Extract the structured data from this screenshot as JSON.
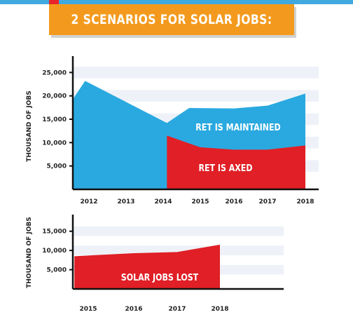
{
  "header": {
    "title": "2 SCENARIOS FOR SOLAR JOBS:"
  },
  "colors": {
    "blue": "#2aa9e0",
    "red": "#e01f26",
    "band": "#eef2f8",
    "banner": "#f39a1e"
  },
  "chart_data": [
    {
      "type": "area",
      "ylabel": "THOUSAND OF JOBS",
      "ylim": [
        0,
        27000
      ],
      "yticks": [
        5000,
        10000,
        15000,
        20000,
        25000
      ],
      "yticklabels": [
        "5,000",
        "10,000",
        "15,000",
        "20,000",
        "25,000"
      ],
      "categories": [
        "2012",
        "2013",
        "2014",
        "2015",
        "2016",
        "2017",
        "2018"
      ],
      "series": [
        {
          "name": "RET IS MAINTAINED",
          "color": "#2aa9e0",
          "points": [
            [
              2011.6,
              19500
            ],
            [
              2011.9,
              23200
            ],
            [
              2014.1,
              14200
            ],
            [
              2014.7,
              17400
            ],
            [
              2016,
              17300
            ],
            [
              2017,
              17900
            ],
            [
              2018,
              20500
            ]
          ]
        },
        {
          "name": "RET IS AXED",
          "color": "#e01f26",
          "points": [
            [
              2014.1,
              11500
            ],
            [
              2015,
              9000
            ],
            [
              2016,
              8500
            ],
            [
              2017,
              8500
            ],
            [
              2018,
              9400
            ]
          ]
        }
      ]
    },
    {
      "type": "area",
      "ylabel": "THOUSAND OF JOBS",
      "ylim": [
        0,
        17500
      ],
      "yticks": [
        5000,
        10000,
        15000
      ],
      "yticklabels": [
        "5,000",
        "10,000",
        "15,000"
      ],
      "categories": [
        "2015",
        "2016",
        "2017",
        "2018"
      ],
      "series": [
        {
          "name": "SOLAR JOBS LOST",
          "color": "#e01f26",
          "points": [
            [
              2014.7,
              8500
            ],
            [
              2016,
              9300
            ],
            [
              2017,
              9600
            ],
            [
              2018,
              11500
            ]
          ]
        }
      ]
    }
  ]
}
